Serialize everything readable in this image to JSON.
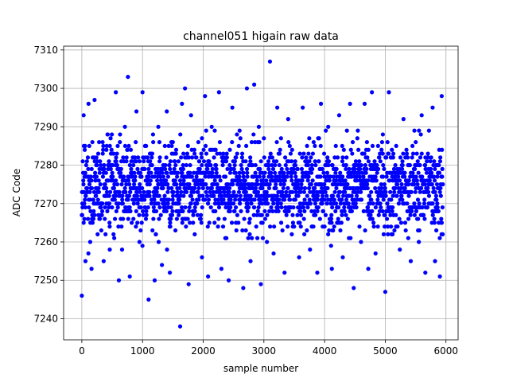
{
  "chart_data": {
    "type": "scatter",
    "title": "channel051 higain raw data",
    "xlabel": "sample number",
    "ylabel": "ADC Code",
    "xlim": [
      -300,
      6200
    ],
    "ylim": [
      7234.5,
      7311
    ],
    "xticks": [
      0,
      1000,
      2000,
      3000,
      4000,
      5000,
      6000
    ],
    "yticks": [
      7240,
      7250,
      7260,
      7270,
      7280,
      7290,
      7300,
      7310
    ],
    "grid": true,
    "legend": "none",
    "marker_color": "#0000ff",
    "series": [
      {
        "points_note_hidden": true,
        "x": [
          0,
          30,
          60,
          110,
          160,
          210,
          260,
          310,
          360,
          410,
          460,
          510,
          560,
          610,
          660,
          710,
          760,
          790,
          850,
          900,
          950,
          1000,
          1030,
          1100,
          1150,
          1200,
          1260,
          1320,
          1380,
          1400,
          1450,
          1500,
          1560,
          1620,
          1650,
          1700,
          1760,
          1800,
          1860,
          1920,
          1980,
          2030,
          2080,
          2140,
          2200,
          2260,
          2300,
          2360,
          2420,
          2480,
          2540,
          2600,
          2660,
          2720,
          2780,
          2840,
          2880,
          2950,
          3000,
          3050,
          3100,
          3160,
          3220,
          3280,
          3340,
          3400,
          3460,
          3520,
          3580,
          3640,
          3700,
          3760,
          3820,
          3880,
          3940,
          4000,
          4060,
          4120,
          4180,
          4240,
          4300,
          4360,
          4420,
          4480,
          4540,
          4600,
          4660,
          4720,
          4780,
          4840,
          4900,
          4960,
          5000,
          5060,
          5120,
          5180,
          5240,
          5300,
          5360,
          5420,
          5480,
          5540,
          5600,
          5660,
          5720,
          5780,
          5820,
          5860,
          5900,
          5930
        ],
        "y": [
          7246,
          7293,
          7255,
          7296,
          7253,
          7297,
          7262,
          7280,
          7255,
          7285,
          7258,
          7276,
          7299,
          7250,
          7270,
          7290,
          7303,
          7251,
          7266,
          7294,
          7260,
          7299,
          7271,
          7245,
          7283,
          7250,
          7290,
          7254,
          7276,
          7294,
          7252,
          7286,
          7268,
          7238,
          7296,
          7300,
          7249,
          7293,
          7262,
          7278,
          7256,
          7298,
          7251,
          7290,
          7268,
          7299,
          7253,
          7282,
          7250,
          7295,
          7265,
          7289,
          7248,
          7300,
          7255,
          7301,
          7275,
          7249,
          7287,
          7260,
          7307,
          7257,
          7295,
          7270,
          7252,
          7292,
          7262,
          7280,
          7256,
          7295,
          7270,
          7258,
          7286,
          7252,
          7296,
          7264,
          7290,
          7253,
          7278,
          7293,
          7256,
          7271,
          7296,
          7248,
          7287,
          7260,
          7296,
          7253,
          7299,
          7257,
          7270,
          7288,
          7247,
          7299,
          7262,
          7285,
          7258,
          7292,
          7270,
          7255,
          7289,
          7263,
          7293,
          7252,
          7289,
          7295,
          7255,
          7280,
          7251,
          7298
        ]
      }
    ]
  }
}
